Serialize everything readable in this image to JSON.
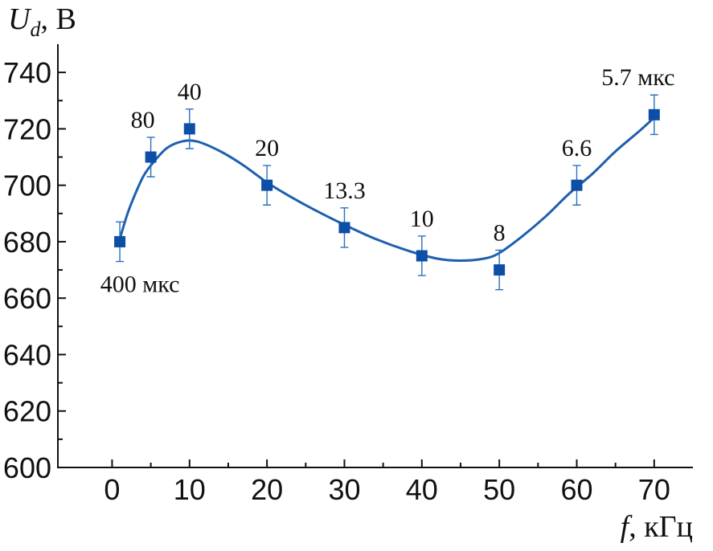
{
  "chart_data": {
    "type": "scatter",
    "y_title": {
      "symbol": "U",
      "subscript": "d",
      "unit": ", В"
    },
    "x_title": {
      "symbol": "f",
      "unit": ", кГц"
    },
    "xlim": [
      -7,
      75
    ],
    "ylim": [
      600,
      750
    ],
    "x_ticks": [
      0,
      10,
      20,
      30,
      40,
      50,
      60,
      70
    ],
    "y_ticks": [
      600,
      620,
      640,
      660,
      680,
      700,
      720,
      740
    ],
    "x_tick_labels": [
      "0",
      "10",
      "20",
      "30",
      "40",
      "50",
      "60",
      "70"
    ],
    "y_tick_labels": [
      "600",
      "620",
      "640",
      "660",
      "680",
      "700",
      "720",
      "740"
    ],
    "points": [
      {
        "x": 1,
        "y": 680,
        "err": 7,
        "label": "400 мкс",
        "label_pos": "below"
      },
      {
        "x": 5,
        "y": 710,
        "err": 7,
        "label": "80",
        "label_pos": "above-left"
      },
      {
        "x": 10,
        "y": 720,
        "err": 7,
        "label": "40",
        "label_pos": "above"
      },
      {
        "x": 20,
        "y": 700,
        "err": 7,
        "label": "20",
        "label_pos": "above"
      },
      {
        "x": 30,
        "y": 685,
        "err": 7,
        "label": "13.3",
        "label_pos": "above"
      },
      {
        "x": 40,
        "y": 675,
        "err": 7,
        "label": "10",
        "label_pos": "above"
      },
      {
        "x": 50,
        "y": 670,
        "err": 7,
        "label": "8",
        "label_pos": "above"
      },
      {
        "x": 60,
        "y": 700,
        "err": 7,
        "label": "6.6",
        "label_pos": "above"
      },
      {
        "x": 70,
        "y": 725,
        "err": 7,
        "label": "5.7 мкс",
        "label_pos": "above"
      }
    ],
    "fit_curve": [
      [
        1,
        681
      ],
      [
        2,
        690
      ],
      [
        3,
        697
      ],
      [
        4,
        703
      ],
      [
        5,
        707
      ],
      [
        7,
        713
      ],
      [
        9,
        715.5
      ],
      [
        11,
        715.5
      ],
      [
        14,
        712
      ],
      [
        17,
        707
      ],
      [
        20,
        701
      ],
      [
        23,
        696
      ],
      [
        26,
        691.5
      ],
      [
        30,
        686
      ],
      [
        34,
        681
      ],
      [
        38,
        677
      ],
      [
        42,
        674
      ],
      [
        45,
        673.3
      ],
      [
        48,
        674
      ],
      [
        50,
        676
      ],
      [
        53,
        682
      ],
      [
        56,
        689
      ],
      [
        59,
        697
      ],
      [
        62,
        704
      ],
      [
        65,
        712
      ],
      [
        68,
        719
      ],
      [
        70,
        724
      ]
    ],
    "colors": {
      "marker": "#0d4fa6",
      "curve": "#1f5fae",
      "errorbar": "#2a6fbe"
    }
  }
}
